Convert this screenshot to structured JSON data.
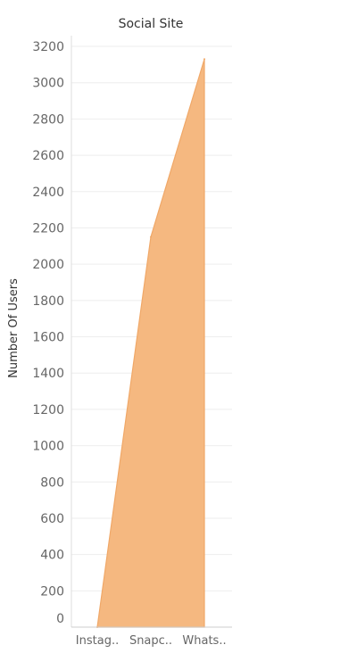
{
  "chart_data": {
    "type": "area",
    "title": "Social Site",
    "xlabel": "",
    "ylabel": "Number Of Users",
    "categories": [
      "Instag..",
      "Snapc..",
      "Whats.."
    ],
    "series": [
      {
        "values": [
          0,
          2150,
          3130
        ]
      }
    ],
    "ylim": [
      0,
      3200
    ],
    "yticks": [
      0,
      200,
      400,
      600,
      800,
      1000,
      1200,
      1400,
      1600,
      1800,
      2000,
      2200,
      2400,
      2600,
      2800,
      3000,
      3200
    ],
    "grid": true,
    "legend": "none",
    "colors": {
      "fill": "#F5B880",
      "stroke": "#F0A868",
      "grid": "#EEEEEE",
      "axis": "#CCCCCC"
    }
  }
}
